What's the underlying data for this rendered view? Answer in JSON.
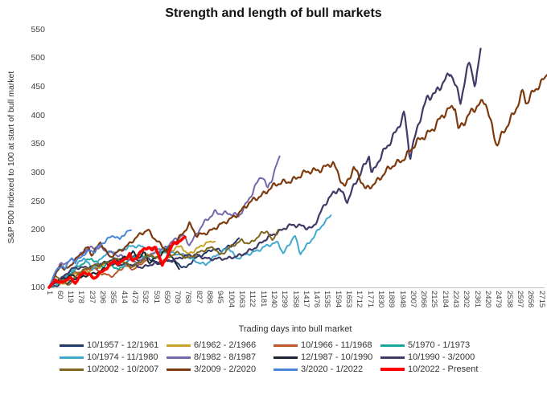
{
  "chart_data": {
    "type": "line",
    "title": "Strength and length of bull markets",
    "xlabel": "Trading days into bull market",
    "ylabel": "S&P 500 Indexed to 100 at start of bull market",
    "ylim": [
      100,
      550
    ],
    "xlim": [
      1,
      2715
    ],
    "grid": false,
    "legend_position": "bottom",
    "axis_line_color": "#bfbfbf",
    "yticks": [
      100,
      150,
      200,
      250,
      300,
      350,
      400,
      450,
      500,
      550
    ],
    "xticks": [
      1,
      60,
      119,
      178,
      237,
      296,
      355,
      414,
      473,
      532,
      591,
      650,
      709,
      768,
      827,
      886,
      945,
      1004,
      1063,
      1122,
      1181,
      1240,
      1299,
      1358,
      1417,
      1476,
      1535,
      1594,
      1653,
      1712,
      1771,
      1830,
      1889,
      1948,
      2007,
      2066,
      2125,
      2184,
      2243,
      2302,
      2361,
      2420,
      2479,
      2538,
      2597,
      2656,
      2715
    ],
    "series": [
      {
        "name": "10/1957 - 12/1961",
        "color": "#1F3864",
        "width": 2,
        "points": [
          [
            1,
            100
          ],
          [
            48,
            103
          ],
          [
            170,
            117
          ],
          [
            295,
            142
          ],
          [
            420,
            153
          ],
          [
            450,
            156
          ],
          [
            495,
            146
          ],
          [
            545,
            153
          ],
          [
            600,
            141
          ],
          [
            680,
            148
          ],
          [
            755,
            134
          ],
          [
            800,
            148
          ],
          [
            900,
            168
          ],
          [
            950,
            163
          ],
          [
            1000,
            172
          ],
          [
            1048,
            186
          ]
        ]
      },
      {
        "name": "6/1962 - 2/1966",
        "color": "#C9A22B",
        "width": 2,
        "points": [
          [
            1,
            100
          ],
          [
            40,
            112
          ],
          [
            80,
            105
          ],
          [
            130,
            121
          ],
          [
            250,
            133
          ],
          [
            380,
            143
          ],
          [
            500,
            155
          ],
          [
            635,
            162
          ],
          [
            730,
            172
          ],
          [
            762,
            156
          ],
          [
            850,
            176
          ],
          [
            915,
            180
          ]
        ]
      },
      {
        "name": "10/1966 - 11/1968",
        "color": "#C0572B",
        "width": 2,
        "points": [
          [
            1,
            100
          ],
          [
            55,
            110
          ],
          [
            105,
            123
          ],
          [
            245,
            133
          ],
          [
            290,
            125
          ],
          [
            355,
            120
          ],
          [
            420,
            137
          ],
          [
            470,
            133
          ],
          [
            540,
            148
          ]
        ]
      },
      {
        "name": "5/1970 - 1/1973",
        "color": "#19A79B",
        "width": 2,
        "points": [
          [
            1,
            100
          ],
          [
            65,
            112
          ],
          [
            150,
            133
          ],
          [
            235,
            151
          ],
          [
            300,
            136
          ],
          [
            330,
            143
          ],
          [
            380,
            130
          ],
          [
            465,
            155
          ],
          [
            600,
            154
          ],
          [
            665,
            174
          ]
        ]
      },
      {
        "name": "10/1974 - 11/1980",
        "color": "#41A8CE",
        "width": 2,
        "points": [
          [
            1,
            100
          ],
          [
            25,
            112
          ],
          [
            45,
            105
          ],
          [
            130,
            130
          ],
          [
            195,
            153
          ],
          [
            240,
            132
          ],
          [
            320,
            160
          ],
          [
            495,
            173
          ],
          [
            560,
            168
          ],
          [
            700,
            160
          ],
          [
            865,
            140
          ],
          [
            990,
            172
          ],
          [
            1035,
            149
          ],
          [
            1130,
            163
          ],
          [
            1265,
            179
          ],
          [
            1292,
            160
          ],
          [
            1355,
            190
          ],
          [
            1385,
            158
          ],
          [
            1445,
            184
          ],
          [
            1555,
            226
          ]
        ]
      },
      {
        "name": "8/1982 - 8/1987",
        "color": "#7468AC",
        "width": 2,
        "points": [
          [
            1,
            100
          ],
          [
            62,
            140
          ],
          [
            100,
            142
          ],
          [
            212,
            167
          ],
          [
            293,
            169
          ],
          [
            380,
            155
          ],
          [
            492,
            144
          ],
          [
            603,
            163
          ],
          [
            740,
            191
          ],
          [
            775,
            176
          ],
          [
            845,
            207
          ],
          [
            915,
            233
          ],
          [
            1045,
            224
          ],
          [
            1175,
            295
          ],
          [
            1205,
            272
          ],
          [
            1272,
            329
          ]
        ]
      },
      {
        "name": "12/1987 - 10/1990",
        "color": "#1B2433",
        "width": 2,
        "points": [
          [
            1,
            100
          ],
          [
            35,
            109
          ],
          [
            120,
            122
          ],
          [
            175,
            116
          ],
          [
            290,
            130
          ],
          [
            465,
            161
          ],
          [
            490,
            150
          ],
          [
            530,
            160
          ],
          [
            550,
            144
          ],
          [
            655,
            165
          ],
          [
            718,
            132
          ]
        ]
      },
      {
        "name": "10/1990 - 3/2000",
        "color": "#403A66",
        "width": 2.2,
        "points": [
          [
            1,
            100
          ],
          [
            50,
            112
          ],
          [
            130,
            132
          ],
          [
            305,
            141
          ],
          [
            430,
            140
          ],
          [
            510,
            136
          ],
          [
            815,
            158
          ],
          [
            890,
            148
          ],
          [
            1060,
            155
          ],
          [
            1315,
            208
          ],
          [
            1455,
            205
          ],
          [
            1545,
            256
          ],
          [
            1600,
            276
          ],
          [
            1645,
            249
          ],
          [
            1765,
            333
          ],
          [
            1780,
            297
          ],
          [
            1960,
            402
          ],
          [
            1990,
            324
          ],
          [
            2045,
            398
          ],
          [
            2085,
            432
          ],
          [
            2130,
            435
          ],
          [
            2215,
            480
          ],
          [
            2270,
            422
          ],
          [
            2320,
            497
          ],
          [
            2350,
            451
          ],
          [
            2380,
            517
          ]
        ]
      },
      {
        "name": "10/2002 - 10/2007",
        "color": "#7F661F",
        "width": 2,
        "points": [
          [
            1,
            100
          ],
          [
            35,
            121
          ],
          [
            105,
            103
          ],
          [
            175,
            129
          ],
          [
            310,
            143
          ],
          [
            365,
            149
          ],
          [
            460,
            137
          ],
          [
            565,
            156
          ],
          [
            635,
            146
          ],
          [
            700,
            160
          ],
          [
            765,
            152
          ],
          [
            910,
            171
          ],
          [
            945,
            157
          ],
          [
            1065,
            183
          ],
          [
            1110,
            177
          ],
          [
            1205,
            200
          ],
          [
            1230,
            181
          ],
          [
            1265,
            201
          ]
        ]
      },
      {
        "name": "3/2009 - 2/2020",
        "color": "#7E3A0F",
        "width": 2.2,
        "points": [
          [
            1,
            100
          ],
          [
            67,
            140
          ],
          [
            86,
            130
          ],
          [
            218,
            170
          ],
          [
            232,
            156
          ],
          [
            285,
            180
          ],
          [
            335,
            151
          ],
          [
            545,
            201
          ],
          [
            650,
            162
          ],
          [
            775,
            210
          ],
          [
            815,
            189
          ],
          [
            965,
            211
          ],
          [
            1215,
            273
          ],
          [
            1465,
            305
          ],
          [
            1565,
            315
          ],
          [
            1630,
            276
          ],
          [
            1680,
            310
          ],
          [
            1745,
            270
          ],
          [
            1965,
            330
          ],
          [
            2240,
            420
          ],
          [
            2255,
            378
          ],
          [
            2405,
            430
          ],
          [
            2470,
            345
          ],
          [
            2615,
            442
          ],
          [
            2630,
            418
          ],
          [
            2700,
            455
          ],
          [
            2755,
            475
          ]
        ]
      },
      {
        "name": "3/2020 - 1/2022",
        "color": "#4A86D8",
        "width": 2,
        "points": [
          [
            1,
            100
          ],
          [
            35,
            128
          ],
          [
            75,
            140
          ],
          [
            90,
            133
          ],
          [
            125,
            152
          ],
          [
            145,
            142
          ],
          [
            190,
            158
          ],
          [
            230,
            166
          ],
          [
            250,
            162
          ],
          [
            310,
            180
          ],
          [
            360,
            193
          ],
          [
            390,
            184
          ],
          [
            425,
            196
          ],
          [
            453,
            200
          ]
        ]
      },
      {
        "name": "10/2022 - Present",
        "color": "#FF0000",
        "width": 3.6,
        "points": [
          [
            1,
            100
          ],
          [
            35,
            114
          ],
          [
            55,
            107
          ],
          [
            125,
            116
          ],
          [
            145,
            108
          ],
          [
            190,
            128
          ],
          [
            250,
            115
          ],
          [
            310,
            133
          ],
          [
            365,
            147
          ],
          [
            385,
            139
          ],
          [
            445,
            158
          ],
          [
            460,
            146
          ],
          [
            500,
            160
          ],
          [
            545,
            170
          ],
          [
            570,
            163
          ],
          [
            590,
            172
          ],
          [
            625,
            139
          ],
          [
            680,
            173
          ],
          [
            720,
            180
          ],
          [
            750,
            188
          ]
        ]
      }
    ]
  }
}
